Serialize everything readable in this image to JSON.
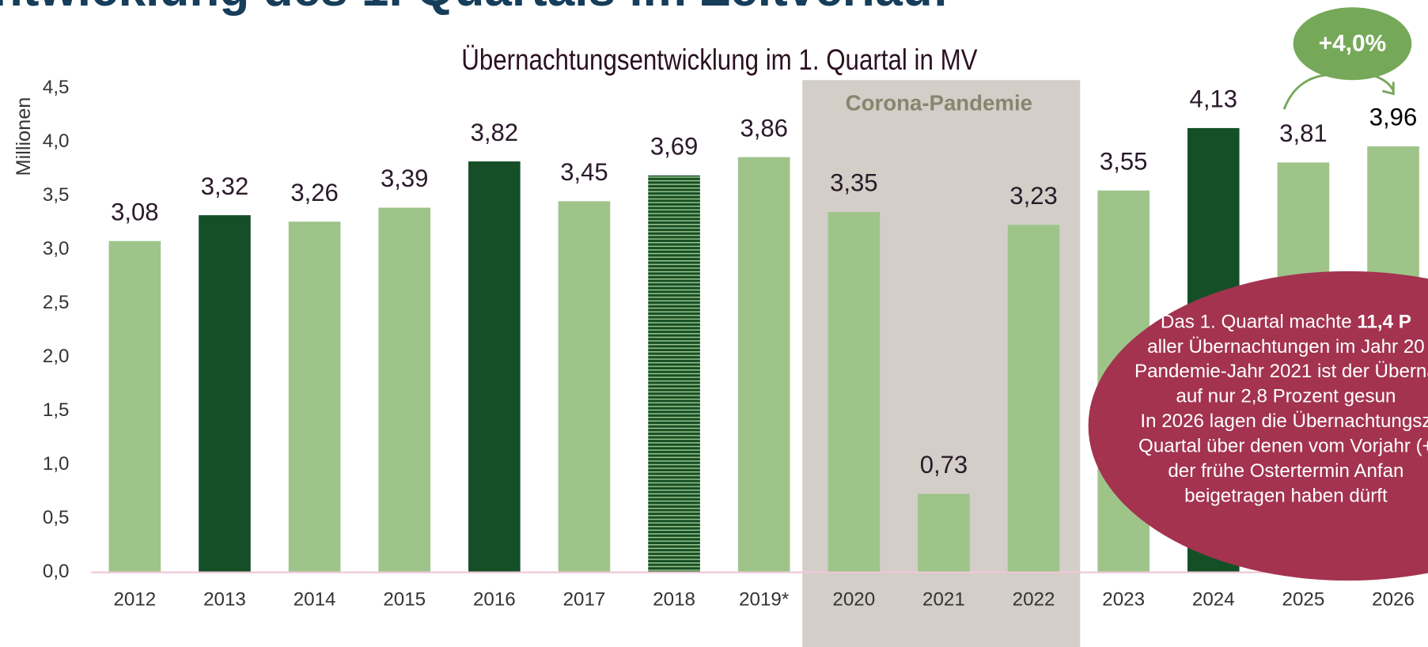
{
  "header": {
    "title": "ntwicklung des 1. Quartals im Zeitverlauf"
  },
  "chart_data": {
    "type": "bar",
    "title": "Übernachtungsentwicklung im 1. Quartal in MV",
    "y_label": "Millionen",
    "categories": [
      "2012",
      "2013",
      "2014",
      "2015",
      "2016",
      "2017",
      "2018",
      "2019*",
      "2020",
      "2021",
      "2022",
      "2023",
      "2024",
      "2025",
      "2026"
    ],
    "values": [
      3.08,
      3.32,
      3.26,
      3.39,
      3.82,
      3.45,
      3.69,
      3.86,
      3.35,
      0.73,
      3.23,
      3.55,
      4.13,
      3.81,
      3.96
    ],
    "value_labels": [
      "3,08",
      "3,32",
      "3,26",
      "3,39",
      "3,82",
      "3,45",
      "3,69",
      "3,86",
      "3,35",
      "0,73",
      "3,23",
      "3,55",
      "4,13",
      "3,81",
      "3,96"
    ],
    "colors": [
      "#9ec48a",
      "#154f27",
      "#9ec48a",
      "#9ec48a",
      "#154f27",
      "#9ec48a",
      "#154f27",
      "#9ec48a",
      "#9ec48a",
      "#9ec48a",
      "#9ec48a",
      "#9ec48a",
      "#154f27",
      "#9ec48a",
      "#9ec48a"
    ],
    "hatched": [
      false,
      false,
      false,
      false,
      false,
      false,
      true,
      false,
      false,
      false,
      false,
      false,
      false,
      false,
      false
    ],
    "ylim": [
      0,
      4.5
    ],
    "yticks": [
      {
        "value": 0,
        "label": "0,0"
      },
      {
        "value": 0.5,
        "label": "0,5"
      },
      {
        "value": 1,
        "label": "1,0"
      },
      {
        "value": 1.5,
        "label": "1,5"
      },
      {
        "value": 2,
        "label": "2,0"
      },
      {
        "value": 2.5,
        "label": "2,5"
      },
      {
        "value": 3,
        "label": "3,0"
      },
      {
        "value": 3.5,
        "label": "3,5"
      },
      {
        "value": 4,
        "label": "4,0"
      },
      {
        "value": 4.5,
        "label": "4,5"
      }
    ],
    "grid": false,
    "annotations": {
      "band_label": "Corona-Pandemie",
      "change_label": "+4,0%",
      "callout": [
        {
          "text": "Das 1. Quartal machte ",
          "bold": "11,4 P"
        },
        {
          "text": "aller Übernachtungen im Jahr 20"
        },
        {
          "text": "Pandemie-Jahr 2021 ist der Überna"
        },
        {
          "text": "auf nur 2,8 Prozent gesun"
        },
        {
          "text": "In 2026 lagen die Übernachtungsz"
        },
        {
          "text": "Quartal über denen vom Vorjahr (+"
        },
        {
          "text": "der frühe Ostertermin Anfan"
        },
        {
          "text": "beigetragen haben dürft"
        }
      ]
    }
  }
}
